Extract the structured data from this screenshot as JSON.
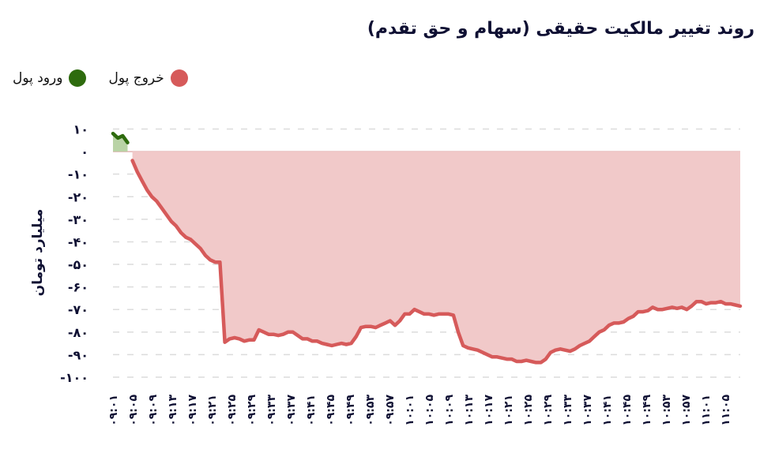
{
  "chart_data": {
    "type": "area",
    "title": "روند تغییر مالکیت حقیقی (سهام و حق تقدم)",
    "xlabel": "",
    "ylabel": "میلیارد تومان",
    "ylim": [
      -100,
      10
    ],
    "yticks": [
      10,
      0,
      -10,
      -20,
      -30,
      -40,
      -50,
      -60,
      -70,
      -80,
      -90,
      -100
    ],
    "ytick_labels": [
      "۱۰",
      "۰",
      "-۱۰",
      "-۲۰",
      "-۳۰",
      "-۴۰",
      "-۵۰",
      "-۶۰",
      "-۷۰",
      "-۸۰",
      "-۹۰",
      "-۱۰۰"
    ],
    "grid": "horizontal dashed",
    "legend_position": "top-left",
    "legend": [
      {
        "name": "ورود پول",
        "color": "#2e6b0e"
      },
      {
        "name": "خروج پول",
        "color": "#d65a5a"
      }
    ],
    "x_tick_labels": [
      "۰۹:۰۱",
      "۰۹:۰۵",
      "۰۹:۰۹",
      "۰۹:۱۳",
      "۰۹:۱۷",
      "۰۹:۲۱",
      "۰۹:۲۵",
      "۰۹:۲۹",
      "۰۹:۳۳",
      "۰۹:۳۷",
      "۰۹:۴۱",
      "۰۹:۴۵",
      "۰۹:۴۹",
      "۰۹:۵۳",
      "۰۹:۵۷",
      "۱۰:۰۱",
      "۱۰:۰۵",
      "۱۰:۰۹",
      "۱۰:۱۳",
      "۱۰:۱۷",
      "۱۰:۲۱",
      "۱۰:۲۵",
      "۱۰:۲۹",
      "۱۰:۳۳",
      "۱۰:۳۷",
      "۱۰:۴۱",
      "۱۰:۴۵",
      "۱۰:۴۹",
      "۱۰:۵۳",
      "۱۰:۵۷",
      "۱۱:۰۱",
      "۱۱:۰۵"
    ],
    "x": [
      "09:01",
      "09:02",
      "09:03",
      "09:04",
      "09:05",
      "09:06",
      "09:07",
      "09:08",
      "09:09",
      "09:10",
      "09:11",
      "09:12",
      "09:13",
      "09:14",
      "09:15",
      "09:16",
      "09:17",
      "09:18",
      "09:19",
      "09:20",
      "09:21",
      "09:22",
      "09:23",
      "09:24",
      "09:25",
      "09:26",
      "09:27",
      "09:28",
      "09:29",
      "09:30",
      "09:31",
      "09:32",
      "09:33",
      "09:34",
      "09:35",
      "09:36",
      "09:37",
      "09:38",
      "09:39",
      "09:40",
      "09:41",
      "09:42",
      "09:43",
      "09:44",
      "09:45",
      "09:46",
      "09:47",
      "09:48",
      "09:49",
      "09:50",
      "09:51",
      "09:52",
      "09:53",
      "09:54",
      "09:55",
      "09:56",
      "09:57",
      "09:58",
      "09:59",
      "10:00",
      "10:01",
      "10:02",
      "10:03",
      "10:04",
      "10:05",
      "10:06",
      "10:07",
      "10:08",
      "10:09",
      "10:10",
      "10:11",
      "10:12",
      "10:13",
      "10:14",
      "10:15",
      "10:16",
      "10:17",
      "10:18",
      "10:19",
      "10:20",
      "10:21",
      "10:22",
      "10:23",
      "10:24",
      "10:25",
      "10:26",
      "10:27",
      "10:28",
      "10:29",
      "10:30",
      "10:31",
      "10:32",
      "10:33",
      "10:34",
      "10:35",
      "10:36",
      "10:37",
      "10:38",
      "10:39",
      "10:40",
      "10:41",
      "10:42",
      "10:43",
      "10:44",
      "10:45",
      "10:46",
      "10:47",
      "10:48",
      "10:49",
      "10:50",
      "10:51",
      "10:52",
      "10:53",
      "10:54",
      "10:55",
      "10:56",
      "10:57",
      "10:58",
      "10:59",
      "11:00",
      "11:01",
      "11:02",
      "11:03",
      "11:04",
      "11:05",
      "11:06",
      "11:07",
      "11:08"
    ],
    "series": [
      {
        "name": "net_flow",
        "values": [
          8,
          6,
          7,
          4,
          -4,
          -9,
          -13,
          -17,
          -20,
          -22,
          -25,
          -28,
          -31,
          -33,
          -36,
          -38,
          -39,
          -41,
          -43,
          -46,
          -48,
          -49,
          -49,
          -84.5,
          -83,
          -82.5,
          -83,
          -84,
          -83.5,
          -83.5,
          -79,
          -80,
          -81,
          -81,
          -81.5,
          -81,
          -80,
          -80,
          -81.5,
          -83,
          -83,
          -84,
          -84,
          -85,
          -85.5,
          -86,
          -85.5,
          -85,
          -85.5,
          -85,
          -82,
          -78,
          -77.5,
          -77.5,
          -78,
          -77,
          -76,
          -75,
          -77,
          -75,
          -72,
          -72,
          -70,
          -71,
          -72,
          -72,
          -72.5,
          -72,
          -72,
          -72,
          -72.5,
          -80,
          -86,
          -87,
          -87.5,
          -88,
          -89,
          -90,
          -91,
          -91,
          -91.5,
          -92,
          -92,
          -93,
          -93,
          -92.5,
          -93,
          -93.5,
          -93.5,
          -92,
          -89,
          -88,
          -87.5,
          -88,
          -88.5,
          -87.5,
          -86,
          -85,
          -84,
          -82,
          -80,
          -79,
          -77,
          -76,
          -76,
          -75.5,
          -74,
          -73,
          -71,
          -71,
          -70.5,
          -69,
          -70,
          -70,
          -69.5,
          -69,
          -69.5,
          -69,
          -70,
          -68.5,
          -66.5,
          -66.5,
          -67.5,
          -67,
          -67,
          -66.5,
          -67.5,
          -67.5,
          -68,
          -68.5
        ]
      }
    ]
  }
}
